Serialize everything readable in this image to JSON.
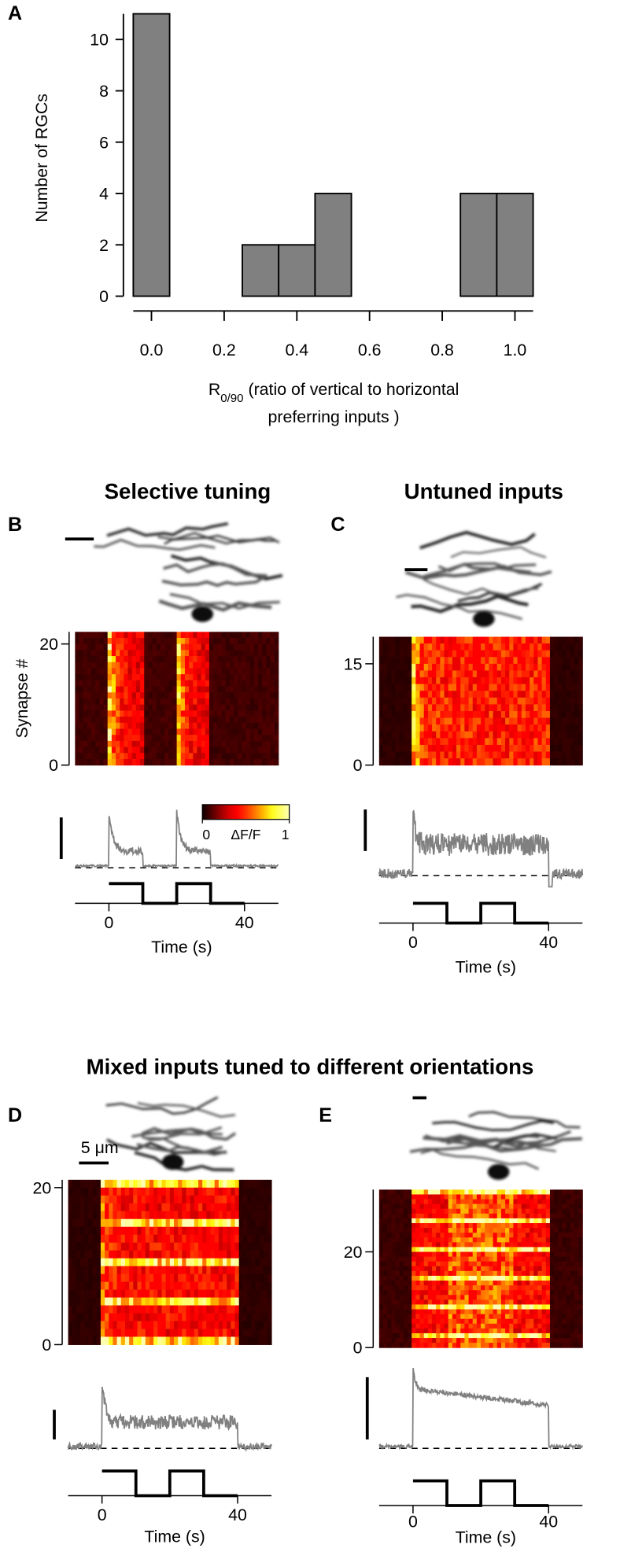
{
  "chart_data": {
    "type": "histogram",
    "panel_label": "A",
    "ylabel": "Number of RGCs",
    "xlabel_symbol": "R",
    "xlabel_subscript": "0/90",
    "xlabel_line1": " (ratio of vertical to horizontal",
    "xlabel_line2": "preferring inputs )",
    "bins": [
      -0.05,
      0.05,
      0.15,
      0.25,
      0.35,
      0.45,
      0.55,
      0.65,
      0.75,
      0.85,
      0.95,
      1.05
    ],
    "counts": [
      11,
      0,
      0,
      2,
      2,
      4,
      0,
      0,
      0,
      4,
      4
    ],
    "color": "#808080",
    "xlim": [
      -0.05,
      1.05
    ],
    "ylim": [
      0,
      11
    ],
    "xticks": [
      {
        "value": 0,
        "label": "0.0"
      },
      {
        "value": 0.2,
        "label": "0.2"
      },
      {
        "value": 0.4,
        "label": "0.4"
      },
      {
        "value": 0.6,
        "label": "0.6"
      },
      {
        "value": 0.8,
        "label": "0.8"
      },
      {
        "value": 1,
        "label": "1.0"
      }
    ],
    "yticks": [
      0,
      2,
      4,
      6,
      8,
      10
    ]
  },
  "group_title": "Mixed inputs tuned to different orientations",
  "panels": [
    {
      "label": "B",
      "title": "Selective tuning",
      "ylabel": "Synapse #",
      "ylim": [
        0,
        22
      ],
      "yticks": [
        0,
        20
      ],
      "xlabel": "Time (s)",
      "xlim": [
        -10,
        50
      ],
      "xticks": [
        0,
        40
      ],
      "colorbar": {
        "label": "ΔF/F",
        "ticks": [
          0,
          1
        ]
      }
    },
    {
      "label": "C",
      "title": "Untuned inputs",
      "ylim": [
        0,
        19
      ],
      "yticks": [
        0,
        15
      ],
      "xlabel": "Time (s)",
      "xlim": [
        -10,
        50
      ],
      "xticks": [
        0,
        40
      ]
    },
    {
      "label": "D",
      "scale_label": "5 μm",
      "ylim": [
        0,
        21
      ],
      "yticks": [
        0,
        20
      ],
      "xlabel": "Time (s)",
      "xlim": [
        -10,
        50
      ],
      "xticks": [
        0,
        40
      ]
    },
    {
      "label": "E",
      "ylim": [
        0,
        33
      ],
      "yticks": [
        0,
        20
      ],
      "xlabel": "Time (s)",
      "xlim": [
        -10,
        50
      ],
      "xticks": [
        0,
        40
      ]
    }
  ]
}
